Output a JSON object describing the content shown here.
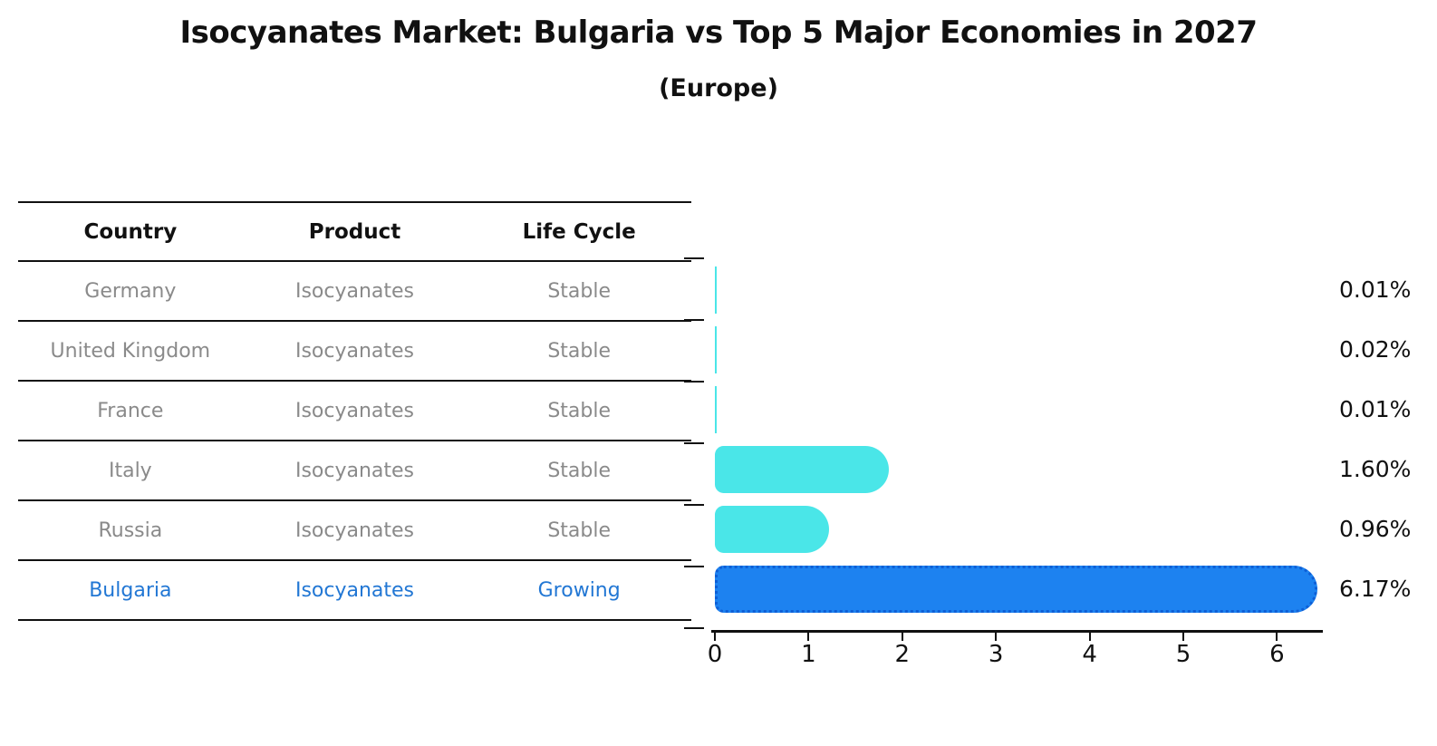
{
  "figure": {
    "title": "Isocyanates Market: Bulgaria vs Top 5 Major Economies in 2027",
    "subtitle": "(Europe)"
  },
  "table": {
    "headers": [
      "Country",
      "Product",
      "Life Cycle"
    ],
    "rows": [
      {
        "country": "Germany",
        "product": "Isocyanates",
        "life_cycle": "Stable",
        "highlight": false
      },
      {
        "country": "United Kingdom",
        "product": "Isocyanates",
        "life_cycle": "Stable",
        "highlight": false
      },
      {
        "country": "France",
        "product": "Isocyanates",
        "life_cycle": "Stable",
        "highlight": false
      },
      {
        "country": "Italy",
        "product": "Isocyanates",
        "life_cycle": "Stable",
        "highlight": false
      },
      {
        "country": "Russia",
        "product": "Isocyanates",
        "life_cycle": "Stable",
        "highlight": false
      },
      {
        "country": "Bulgaria",
        "product": "Isocyanates",
        "life_cycle": "Growing",
        "highlight": true
      }
    ]
  },
  "chart_data": {
    "type": "bar",
    "orientation": "horizontal",
    "title": "Isocyanates Market: Bulgaria vs Top 5 Major Economies in 2027 (Europe)",
    "categories": [
      "Germany",
      "United Kingdom",
      "France",
      "Italy",
      "Russia",
      "Bulgaria"
    ],
    "values": [
      0.01,
      0.02,
      0.01,
      1.6,
      0.96,
      6.17
    ],
    "value_labels": [
      "0.01%",
      "0.02%",
      "0.01%",
      "1.60%",
      "0.96%",
      "6.17%"
    ],
    "x_ticks": [
      "0",
      "1",
      "2",
      "3",
      "4",
      "5",
      "6"
    ],
    "xlim": [
      0,
      6.5
    ],
    "xlabel": "",
    "ylabel": "",
    "grid": false,
    "legend": false,
    "highlight_index": 5
  },
  "colors": {
    "bar_default": "#4AE6E8",
    "bar_highlight": "#1D82F0",
    "bar_highlight_edge": "#0E5FD6",
    "row_text": "#8A8A8A",
    "highlight_text": "#2277D4",
    "ink": "#111111"
  }
}
